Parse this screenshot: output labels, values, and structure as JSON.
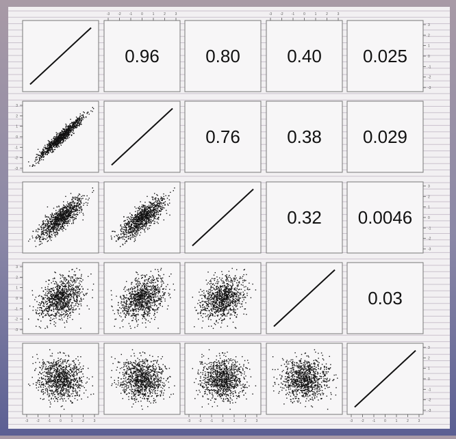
{
  "chart_data": {
    "type": "scatter-matrix",
    "n_variables": 5,
    "n_points_per_panel": 1000,
    "correlations": [
      [
        1,
        0.96,
        0.8,
        0.4,
        0.025
      ],
      [
        0.96,
        1,
        0.76,
        0.38,
        0.029
      ],
      [
        0.8,
        0.76,
        1,
        0.32,
        0.0046
      ],
      [
        0.4,
        0.38,
        0.32,
        1,
        0.03
      ],
      [
        0.025,
        0.029,
        0.0046,
        0.03,
        1
      ]
    ],
    "upper_labels": [
      {
        "row": 0,
        "col": 1,
        "text": "0.96"
      },
      {
        "row": 0,
        "col": 2,
        "text": "0.80"
      },
      {
        "row": 0,
        "col": 3,
        "text": "0.40"
      },
      {
        "row": 0,
        "col": 4,
        "text": "0.025"
      },
      {
        "row": 1,
        "col": 2,
        "text": "0.76"
      },
      {
        "row": 1,
        "col": 3,
        "text": "0.38"
      },
      {
        "row": 1,
        "col": 4,
        "text": "0.029"
      },
      {
        "row": 2,
        "col": 3,
        "text": "0.32"
      },
      {
        "row": 2,
        "col": 4,
        "text": "0.0046"
      },
      {
        "row": 3,
        "col": 4,
        "text": "0.03"
      }
    ],
    "axis_range": [
      -3,
      3
    ],
    "tick_values": [
      -3,
      -2,
      -1,
      0,
      1,
      2,
      3
    ],
    "lower_panels": "scatter",
    "diagonal_panels": "identity line",
    "background": "horizontal ruled lines"
  },
  "colors": {
    "plot_background": "#f2f0f2",
    "rule_line": "#c9c1cc",
    "panel_border": "#777777",
    "points": "#111111",
    "text": "#111111"
  }
}
